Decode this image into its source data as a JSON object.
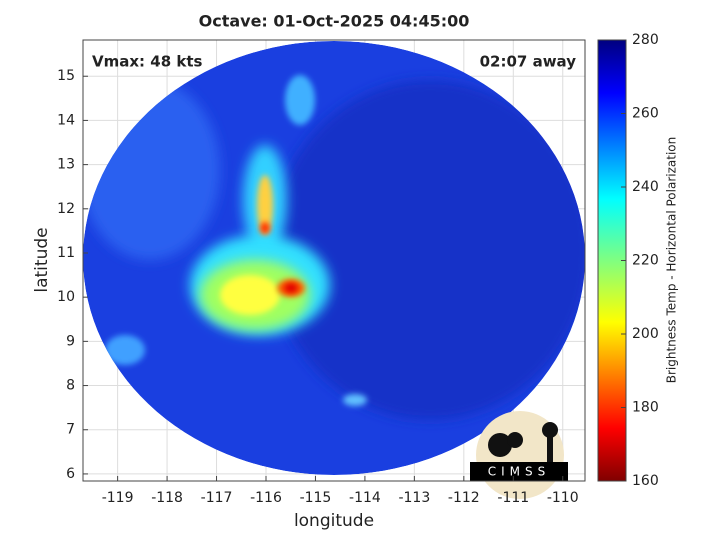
{
  "title": "Octave: 01-Oct-2025 04:45:00",
  "annotations": {
    "vmax": "Vmax: 48 kts",
    "eta": "02:07 away"
  },
  "x_axis": {
    "label": "longitude",
    "lim": [
      -119.7,
      -109.55
    ],
    "ticks": [
      -119,
      -118,
      -117,
      -116,
      -115,
      -114,
      -113,
      -112,
      -111,
      -110
    ]
  },
  "y_axis": {
    "label": "latitude",
    "lim": [
      5.84,
      15.82
    ],
    "ticks": [
      6,
      7,
      8,
      9,
      10,
      11,
      12,
      13,
      14,
      15
    ]
  },
  "colorbar": {
    "label": "Brightness Temp - Horizontal Polarization",
    "lim": [
      160,
      280
    ],
    "ticks": [
      160,
      180,
      200,
      220,
      240,
      260,
      280
    ]
  },
  "logo": "CIMSS"
}
